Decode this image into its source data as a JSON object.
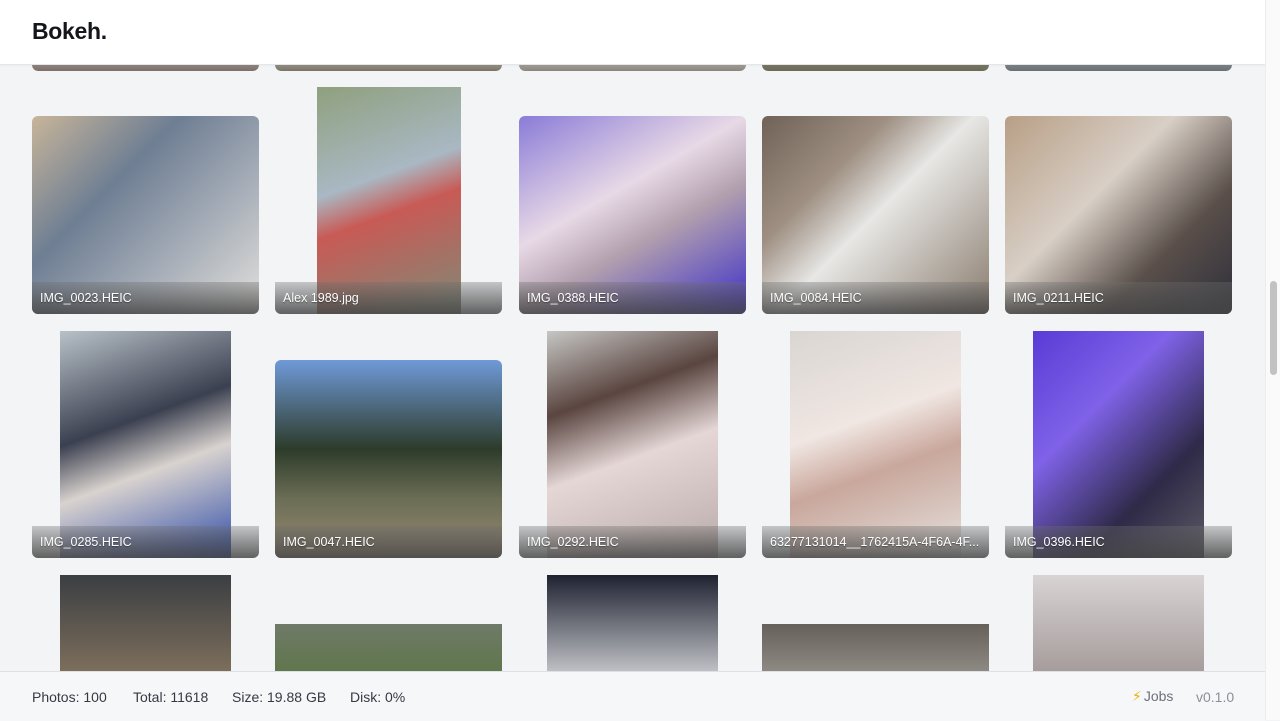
{
  "app": {
    "title": "Bokeh."
  },
  "gallery": {
    "photos": [
      {
        "name": "IMG_0023.HEIC",
        "gradient": "linear-gradient(135deg,#c8b59a 0%,#6e7e93 35%,#9aa3b0 60%,#e2e0dc 100%)"
      },
      {
        "name": "Alex 1989.jpg",
        "gradient": "linear-gradient(160deg,#8fa07e 0%,#a9b8c3 40%,#c85a55 55%,#7d8b77 100%)"
      },
      {
        "name": "IMG_0388.HEIC",
        "gradient": "linear-gradient(150deg,#8a7bd8 0%,#e8d9e6 40%,#b29fae 60%,#3b2ec9 100%)"
      },
      {
        "name": "IMG_0084.HEIC",
        "gradient": "linear-gradient(135deg,#6f6256 0%,#9e8f82 30%,#e7e7e5 50%,#8a7c6e 100%)"
      },
      {
        "name": "IMG_0211.HEIC",
        "gradient": "linear-gradient(135deg,#b89f86 0%,#d8cfc6 40%,#5a4f4a 70%,#2d2f3a 100%)"
      },
      {
        "name": "IMG_0285.HEIC",
        "gradient": "linear-gradient(160deg,#b8c1c8 0%,#3b4050 40%,#d9d3cf 60%,#2f4ca8 100%)"
      },
      {
        "name": "IMG_0047.HEIC",
        "gradient": "linear-gradient(180deg,#6f9ad8 0%,#2d3b2a 45%,#6b6d55 70%,#9a8a73 100%)"
      },
      {
        "name": "IMG_0292.HEIC",
        "gradient": "linear-gradient(160deg,#c6c6c4 0%,#5a4540 30%,#e4d7d6 55%,#b8aaa8 100%)"
      },
      {
        "name": "63277131014__1762415A-4F6A-4F...",
        "gradient": "linear-gradient(160deg,#d9d6d2 0%,#f0e6e2 40%,#c9a79c 60%,#e5e2de 100%)"
      },
      {
        "name": "IMG_0396.HEIC",
        "gradient": "linear-gradient(135deg,#5a3bd6 0%,#7f62e8 35%,#2e2a47 70%,#5d5b66 100%)"
      }
    ],
    "partial_tiles": [
      {
        "gradient": "linear-gradient(180deg,#b7a59a,#7b6f6a)"
      },
      {
        "gradient": "linear-gradient(180deg,#c0b9a8,#7a7468)"
      },
      {
        "gradient": "linear-gradient(180deg,#c9c4bb,#8a857d)"
      },
      {
        "gradient": "linear-gradient(180deg,#8b8a6e,#6c6a57)"
      },
      {
        "gradient": "linear-gradient(180deg,#9aa2a8,#6a6e72)"
      },
      {
        "gradient": "linear-gradient(180deg,#3b3e42,#8d7a62)"
      },
      {
        "gradient": "linear-gradient(180deg,#6f7a68,#56743a)"
      },
      {
        "gradient": "linear-gradient(180deg,#1e2230,#e7e7ea)"
      },
      {
        "gradient": "linear-gradient(180deg,#66605a,#aaa59f)"
      },
      {
        "gradient": "linear-gradient(180deg,#d8d3d4,#9a8f8e)"
      }
    ]
  },
  "footer": {
    "photos": "Photos: 100",
    "total": "Total: 11618",
    "size": "Size: 19.88 GB",
    "disk": "Disk: 0%",
    "jobs": "Jobs",
    "version": "v0.1.0"
  },
  "colors": {
    "background": "#f2f4f6",
    "header": "#ffffff",
    "footer": "#f6f7f9",
    "jobs_bolt": "#e6b400"
  },
  "icons": {
    "jobs": "lightning-bolt-icon"
  }
}
